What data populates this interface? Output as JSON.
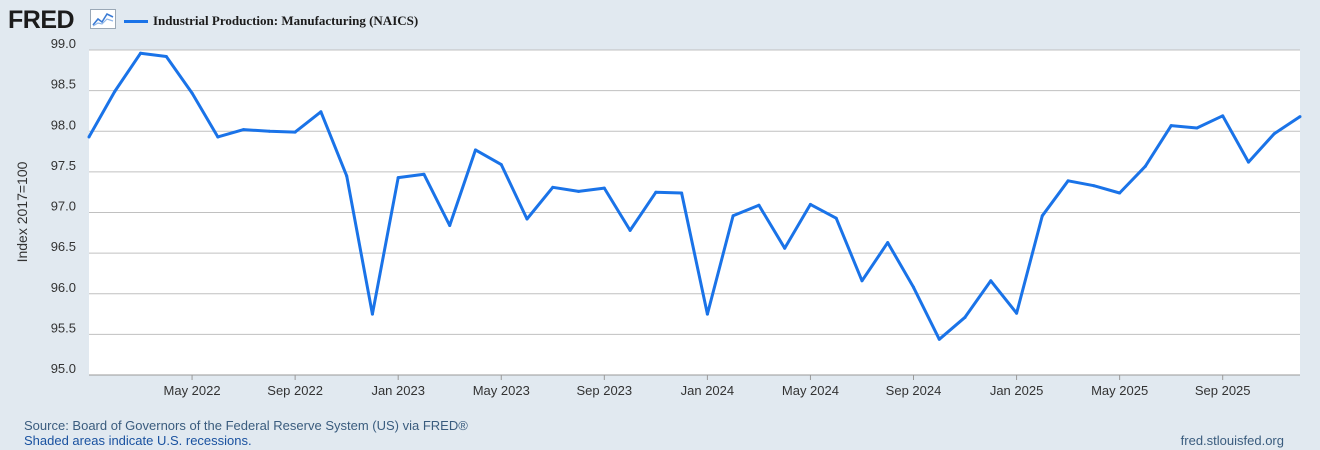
{
  "header": {
    "logo": "FRED",
    "legend_label": "Industrial Production: Manufacturing (NAICS)"
  },
  "footer": {
    "source": "Source: Board of Governors of the Federal Reserve System (US) via FRED®",
    "recessions": "Shaded areas indicate U.S. recessions.",
    "site": "fred.stlouisfed.org"
  },
  "colors": {
    "line": "#1a73e8",
    "plot_bg": "#ffffff",
    "page_bg": "#e1e9f0",
    "grid": "#c0c0c0"
  },
  "chart_data": {
    "type": "line",
    "ylabel": "Index 2017=100",
    "ylim": [
      95.0,
      99.0
    ],
    "yticks": [
      "99.0",
      "98.5",
      "98.0",
      "97.5",
      "97.0",
      "96.5",
      "96.0",
      "95.5",
      "95.0"
    ],
    "xticks": [
      "May 2022",
      "Sep 2022",
      "Jan 2023",
      "May 2023",
      "Sep 2023",
      "Jan 2024",
      "May 2024",
      "Sep 2024",
      "Jan 2025",
      "May 2025",
      "Sep 2025"
    ],
    "grid": true,
    "series": [
      {
        "name": "Industrial Production: Manufacturing (NAICS)",
        "x": [
          "2022-01",
          "2022-02",
          "2022-03",
          "2022-04",
          "2022-05",
          "2022-06",
          "2022-07",
          "2022-08",
          "2022-09",
          "2022-10",
          "2022-11",
          "2022-12",
          "2023-01",
          "2023-02",
          "2023-03",
          "2023-04",
          "2023-05",
          "2023-06",
          "2023-07",
          "2023-08",
          "2023-09",
          "2023-10",
          "2023-11",
          "2023-12",
          "2024-01",
          "2024-02",
          "2024-03",
          "2024-04",
          "2024-05",
          "2024-06",
          "2024-07",
          "2024-08",
          "2024-09",
          "2024-10",
          "2024-11",
          "2024-12",
          "2025-01",
          "2025-02",
          "2025-03",
          "2025-04",
          "2025-05",
          "2025-06",
          "2025-07",
          "2025-08",
          "2025-09",
          "2025-10",
          "2025-11",
          "2025-12"
        ],
        "values": [
          97.93,
          98.49,
          98.96,
          98.92,
          98.47,
          97.93,
          98.02,
          98.0,
          97.99,
          98.24,
          97.45,
          95.75,
          97.43,
          97.47,
          96.84,
          97.77,
          97.59,
          96.92,
          97.31,
          97.26,
          97.3,
          96.78,
          97.25,
          97.24,
          95.75,
          96.96,
          97.09,
          96.56,
          97.1,
          96.93,
          96.16,
          96.63,
          96.08,
          95.44,
          95.71,
          96.16,
          95.76,
          96.96,
          97.39,
          97.33,
          97.24,
          97.57,
          98.07,
          98.04,
          98.19,
          97.62,
          97.97,
          98.18
        ]
      }
    ]
  }
}
